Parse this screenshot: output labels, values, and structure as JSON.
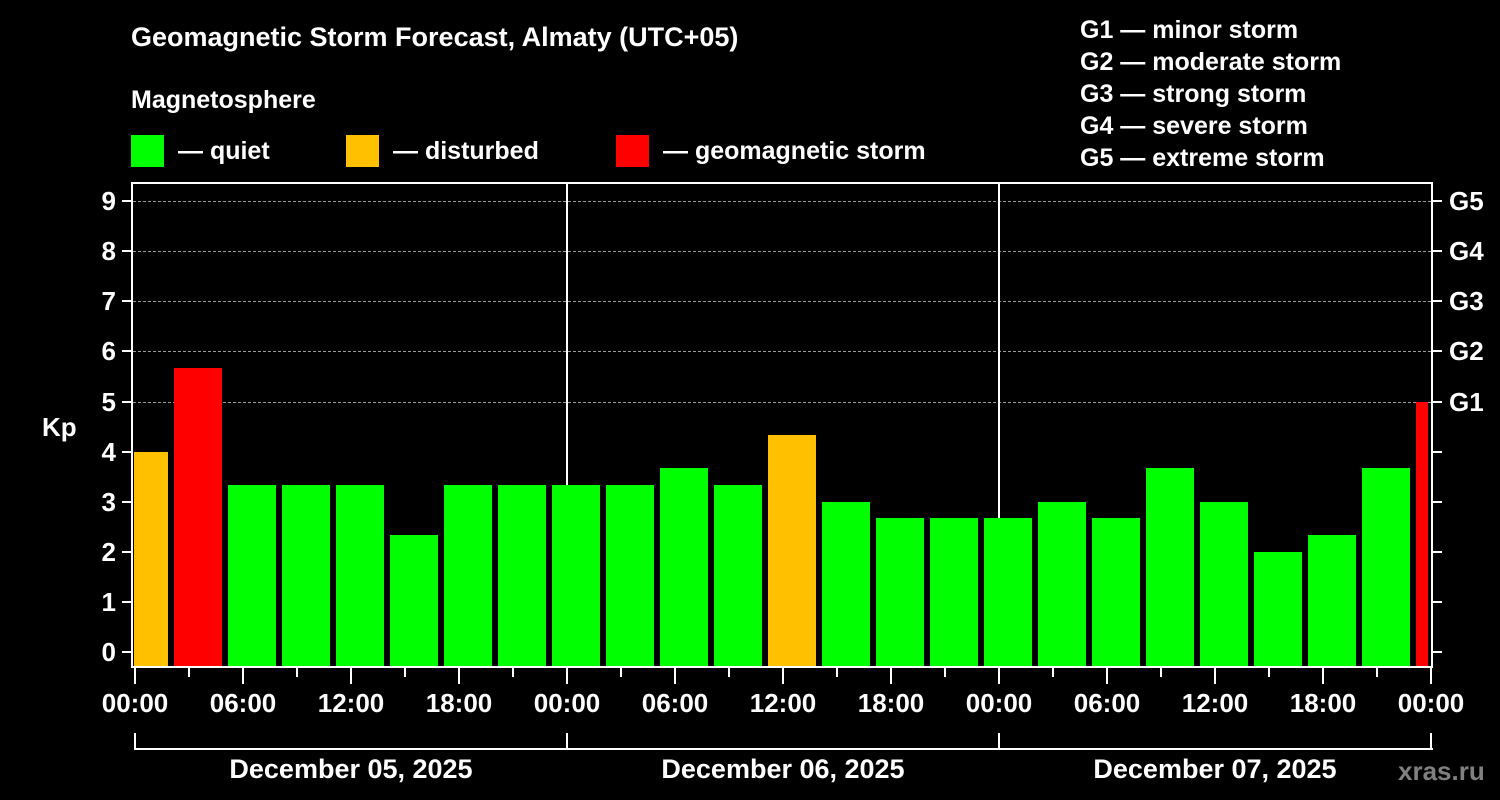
{
  "title": "Geomagnetic Storm Forecast, Almaty (UTC+05)",
  "subtitle": "Magnetosphere",
  "legend": [
    {
      "label": "— quiet",
      "color": "#00ff00"
    },
    {
      "label": "— disturbed",
      "color": "#ffc000"
    },
    {
      "label": "— geomagnetic storm",
      "color": "#ff0000"
    }
  ],
  "g_scale": [
    "G1 — minor storm",
    "G2 — moderate storm",
    "G3 — strong storm",
    "G4 — severe storm",
    "G5 — extreme storm"
  ],
  "axis": {
    "ylabel": "Kp",
    "y_ticks": [
      "0",
      "1",
      "2",
      "3",
      "4",
      "5",
      "6",
      "7",
      "8",
      "9"
    ],
    "right_ticks": [
      {
        "kp": 5,
        "label": "G1"
      },
      {
        "kp": 6,
        "label": "G2"
      },
      {
        "kp": 7,
        "label": "G3"
      },
      {
        "kp": 8,
        "label": "G4"
      },
      {
        "kp": 9,
        "label": "G5"
      }
    ],
    "x_ticks": [
      "00:00",
      "06:00",
      "12:00",
      "18:00",
      "00:00",
      "06:00",
      "12:00",
      "18:00",
      "00:00",
      "06:00",
      "12:00",
      "18:00",
      "00:00"
    ],
    "days": [
      "December 05, 2025",
      "December 06, 2025",
      "December 07, 2025"
    ]
  },
  "brand": "xras.ru",
  "colors": {
    "quiet": "#00ff00",
    "disturbed": "#ffc000",
    "storm": "#ff0000",
    "background": "#000000"
  },
  "chart_data": {
    "type": "bar",
    "title": "Geomagnetic Storm Forecast, Almaty (UTC+05)",
    "xlabel": "",
    "ylabel": "Kp",
    "ylim": [
      0,
      9
    ],
    "grid": "horizontal dashed at Kp 5-9",
    "interval_hours": 3,
    "categories": [
      "Dec 05 00:00",
      "Dec 05 03:00",
      "Dec 05 06:00",
      "Dec 05 09:00",
      "Dec 05 12:00",
      "Dec 05 15:00",
      "Dec 05 18:00",
      "Dec 05 21:00",
      "Dec 06 00:00",
      "Dec 06 03:00",
      "Dec 06 06:00",
      "Dec 06 09:00",
      "Dec 06 12:00",
      "Dec 06 15:00",
      "Dec 06 18:00",
      "Dec 06 21:00",
      "Dec 07 00:00",
      "Dec 07 03:00",
      "Dec 07 06:00",
      "Dec 07 09:00",
      "Dec 07 12:00",
      "Dec 07 15:00",
      "Dec 07 18:00",
      "Dec 07 21:00",
      "Dec 08 00:00"
    ],
    "values": [
      4.0,
      5.67,
      3.33,
      3.33,
      3.33,
      2.33,
      3.33,
      3.33,
      3.33,
      3.33,
      3.67,
      3.33,
      4.33,
      3.0,
      2.67,
      2.67,
      2.67,
      3.0,
      2.67,
      3.67,
      3.0,
      2.0,
      2.33,
      3.67,
      5.0
    ],
    "status": [
      "disturbed",
      "storm",
      "quiet",
      "quiet",
      "quiet",
      "quiet",
      "quiet",
      "quiet",
      "quiet",
      "quiet",
      "quiet",
      "quiet",
      "disturbed",
      "quiet",
      "quiet",
      "quiet",
      "quiet",
      "quiet",
      "quiet",
      "quiet",
      "quiet",
      "quiet",
      "quiet",
      "quiet",
      "storm"
    ],
    "legend": [
      "quiet",
      "disturbed",
      "geomagnetic storm"
    ],
    "right_axis": {
      "G1": 5,
      "G2": 6,
      "G3": 7,
      "G4": 8,
      "G5": 9
    }
  }
}
